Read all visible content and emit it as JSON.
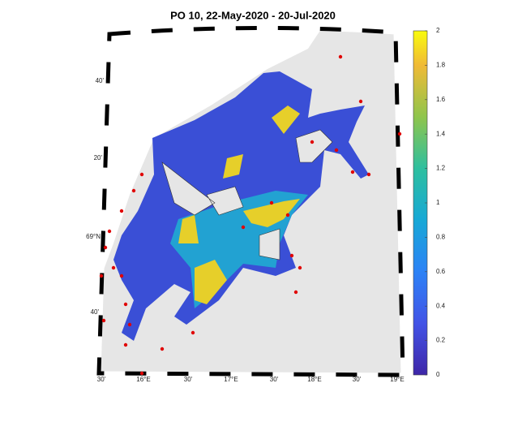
{
  "title": "PO 10, 22-May-2020  - 20-Jul-2020",
  "colorbar": {
    "lim": [
      0,
      2
    ],
    "ticks": [
      0,
      0.2,
      0.4,
      0.6,
      0.8,
      1,
      1.2,
      1.4,
      1.6,
      1.8,
      2
    ]
  },
  "lat_labels": [
    "40'",
    "20'",
    "69°N",
    "40'"
  ],
  "lon_labels": [
    "30'",
    "16°E",
    "30'",
    "17°E",
    "30'",
    "18°E",
    "30'",
    "19°E"
  ]
}
